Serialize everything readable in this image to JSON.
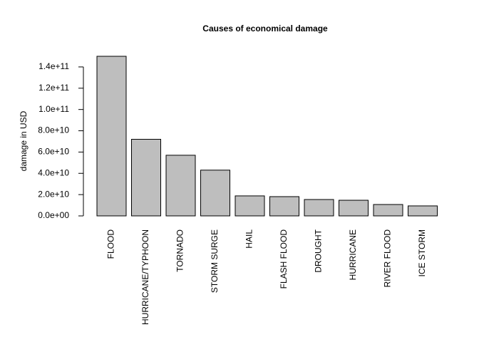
{
  "chart_data": {
    "type": "bar",
    "title": "Causes of economical damage",
    "y_label": "damage in USD",
    "categories": [
      "FLOOD",
      "HURRICANE/TYPHOON",
      "TORNADO",
      "STORM SURGE",
      "HAIL",
      "FLASH FLOOD",
      "DROUGHT",
      "HURRICANE",
      "RIVER FLOOD",
      "ICE STORM"
    ],
    "values": [
      150000000000,
      72000000000,
      57000000000,
      43000000000,
      18800000000,
      18100000000,
      15400000000,
      14700000000,
      10700000000,
      9400000000
    ],
    "color": "#bebebe",
    "ylim": [
      0,
      150000000000
    ],
    "yticks": [
      {
        "value": 0,
        "label": "0.0e+00"
      },
      {
        "value": 20000000000,
        "label": "2.0e+10"
      },
      {
        "value": 40000000000,
        "label": "4.0e+10"
      },
      {
        "value": 60000000000,
        "label": "6.0e+10"
      },
      {
        "value": 80000000000,
        "label": "8.0e+10"
      },
      {
        "value": 100000000000,
        "label": "1.0e+11"
      },
      {
        "value": 120000000000,
        "label": "1.2e+11"
      },
      {
        "value": 140000000000,
        "label": "1.4e+11"
      }
    ]
  }
}
